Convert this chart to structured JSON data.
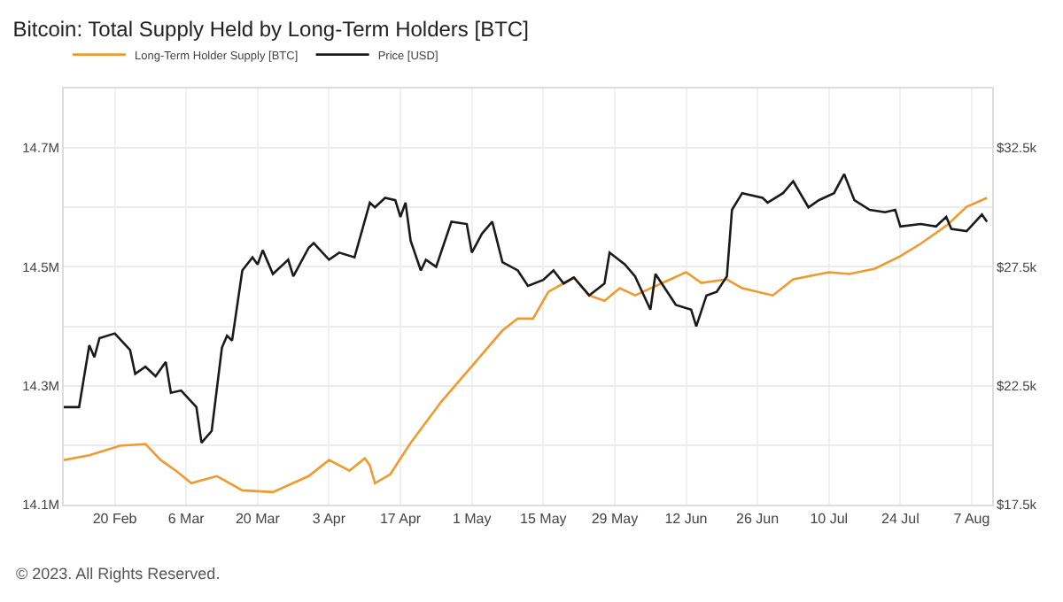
{
  "chart_data": {
    "type": "line",
    "title": "Bitcoin: Total Supply Held by Long-Term Holders [BTC]",
    "annotations": [
      "© 2023. All Rights Reserved."
    ],
    "xlim": [
      "--02-10",
      "--08-11"
    ],
    "xticks": [
      {
        "value": "--02-20",
        "label": "20 Feb"
      },
      {
        "value": "--03-06",
        "label": "6 Mar"
      },
      {
        "value": "--03-20",
        "label": "20 Mar"
      },
      {
        "value": "--04-03",
        "label": "3 Apr"
      },
      {
        "value": "--04-17",
        "label": "17 Apr"
      },
      {
        "value": "--05-01",
        "label": "1 May"
      },
      {
        "value": "--05-15",
        "label": "15 May"
      },
      {
        "value": "--05-29",
        "label": "29 May"
      },
      {
        "value": "--06-12",
        "label": "12 Jun"
      },
      {
        "value": "--06-26",
        "label": "26 Jun"
      },
      {
        "value": "--07-10",
        "label": "10 Jul"
      },
      {
        "value": "--07-24",
        "label": "24 Jul"
      },
      {
        "value": "--08-07",
        "label": "7 Aug"
      }
    ],
    "ylim": [
      14.1,
      14.8
    ],
    "yticks": [
      {
        "value": 14.1,
        "label": "14.1M"
      },
      {
        "value": 14.2,
        "label": null
      },
      {
        "value": 14.3,
        "label": "14.3M"
      },
      {
        "value": 14.4,
        "label": null
      },
      {
        "value": 14.5,
        "label": "14.5M"
      },
      {
        "value": 14.6,
        "label": null
      },
      {
        "value": 14.7,
        "label": "14.7M"
      }
    ],
    "y2lim": [
      17.5,
      35
    ],
    "y2ticks": [
      {
        "value": 17.5,
        "label": "$17.5k"
      },
      {
        "value": 22.5,
        "label": "$22.5k"
      },
      {
        "value": 27.5,
        "label": "$27.5k"
      },
      {
        "value": 32.5,
        "label": "$32.5k"
      }
    ],
    "grid": true,
    "legend": "top left",
    "marker": "none",
    "line_style": "solid",
    "series": [
      {
        "name": "Long-Term Holder Supply [BTC]",
        "color": "#f09a2e",
        "x": [
          "--02-10",
          "--02-15",
          "--02-21",
          "--02-26",
          "--03-01",
          "--03-04",
          "--03-07",
          "--03-12",
          "--03-17",
          "--03-23",
          "--03-30",
          "--04-03",
          "--04-07",
          "--04-10",
          "--04-11",
          "--04-12",
          "--04-15",
          "--04-19",
          "--04-25",
          "--05-01",
          "--05-07",
          "--05-10",
          "--05-13",
          "--05-16",
          "--05-21",
          "--05-24",
          "--05-27",
          "--05-30",
          "--06-02",
          "--06-12",
          "--06-15",
          "--06-20",
          "--06-23",
          "--06-29",
          "--07-03",
          "--07-10",
          "--07-14",
          "--07-19",
          "--07-24",
          "--07-28",
          "--08-02",
          "--08-06",
          "--08-10"
        ],
        "values": [
          14.175,
          14.183,
          14.199,
          14.202,
          14.175,
          14.157,
          14.136,
          14.148,
          14.124,
          14.121,
          14.148,
          14.175,
          14.157,
          14.178,
          14.166,
          14.136,
          14.151,
          14.204,
          14.273,
          14.333,
          14.393,
          14.413,
          14.413,
          14.458,
          14.482,
          14.452,
          14.443,
          14.464,
          14.452,
          14.491,
          14.473,
          14.479,
          14.464,
          14.452,
          14.479,
          14.491,
          14.488,
          14.497,
          14.518,
          14.539,
          14.569,
          14.601,
          14.616
        ]
      },
      {
        "name": "Price [USD]",
        "color": "#1a1a1a",
        "axis": "y2",
        "x": [
          "--02-10",
          "--02-13",
          "--02-15",
          "--02-16",
          "--02-17",
          "--02-20",
          "--02-23",
          "--02-24",
          "--02-26",
          "--02-28",
          "--03-02",
          "--03-03",
          "--03-05",
          "--03-08",
          "--03-09",
          "--03-11",
          "--03-13",
          "--03-14",
          "--03-15",
          "--03-17",
          "--03-19",
          "--03-20",
          "--03-21",
          "--03-23",
          "--03-26",
          "--03-27",
          "--03-30",
          "--03-31",
          "--04-03",
          "--04-05",
          "--04-08",
          "--04-11",
          "--04-12",
          "--04-14",
          "--04-16",
          "--04-17",
          "--04-18",
          "--04-19",
          "--04-21",
          "--04-22",
          "--04-24",
          "--04-27",
          "--04-30",
          "--05-01",
          "--05-03",
          "--05-05",
          "--05-07",
          "--05-10",
          "--05-12",
          "--05-15",
          "--05-17",
          "--05-19",
          "--05-21",
          "--05-24",
          "--05-27",
          "--05-28",
          "--05-31",
          "--06-02",
          "--06-05",
          "--06-06",
          "--06-10",
          "--06-13",
          "--06-14",
          "--06-16",
          "--06-18",
          "--06-20",
          "--06-21",
          "--06-23",
          "--06-27",
          "--06-28",
          "--07-01",
          "--07-03",
          "--07-06",
          "--07-08",
          "--07-11",
          "--07-13",
          "--07-15",
          "--07-18",
          "--07-21",
          "--07-23",
          "--07-24",
          "--07-28",
          "--07-31",
          "--08-02",
          "--08-03",
          "--08-06",
          "--08-09",
          "--08-10"
        ],
        "values": [
          21.6,
          21.6,
          24.2,
          23.7,
          24.5,
          24.7,
          24.0,
          23.0,
          23.3,
          22.9,
          23.5,
          22.2,
          22.3,
          21.6,
          20.1,
          20.6,
          24.1,
          24.6,
          24.4,
          27.35,
          27.9,
          27.6,
          28.2,
          27.2,
          27.8,
          27.1,
          28.3,
          28.5,
          27.8,
          28.1,
          27.9,
          30.2,
          30.0,
          30.4,
          30.3,
          29.6,
          30.2,
          28.6,
          27.35,
          27.8,
          27.5,
          29.4,
          29.3,
          28.1,
          28.9,
          29.4,
          27.7,
          27.35,
          26.7,
          26.95,
          27.35,
          26.8,
          27.05,
          26.3,
          26.8,
          28.1,
          27.6,
          27.1,
          25.7,
          27.2,
          25.9,
          25.7,
          25.0,
          26.3,
          26.45,
          27.1,
          29.9,
          30.6,
          30.4,
          30.2,
          30.6,
          31.1,
          30.0,
          30.3,
          30.6,
          31.4,
          30.3,
          29.9,
          29.8,
          29.9,
          29.2,
          29.3,
          29.2,
          29.6,
          29.1,
          29.0,
          29.7,
          29.4
        ]
      }
    ]
  }
}
